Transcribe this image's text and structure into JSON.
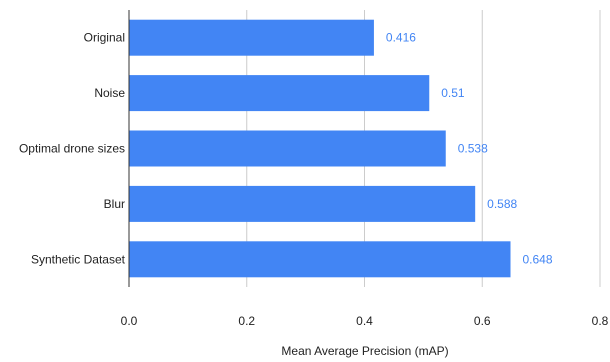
{
  "chart_data": {
    "type": "bar",
    "orientation": "horizontal",
    "categories": [
      "Original",
      "Noise",
      "Optimal drone sizes",
      "Blur",
      "Synthetic Dataset"
    ],
    "values": [
      0.416,
      0.51,
      0.538,
      0.588,
      0.648
    ],
    "data_labels": [
      "0.416",
      "0.51",
      "0.538",
      "0.588",
      "0.648"
    ],
    "title": "",
    "xlabel": "Mean Average Precision (mAP)",
    "ylabel": "",
    "xlim": [
      0,
      0.8
    ],
    "xticks": [
      0,
      0.2,
      0.4,
      0.6,
      0.8
    ],
    "xtick_labels": [
      "0.0",
      "0.2",
      "0.4",
      "0.6",
      "0.8"
    ],
    "grid": true,
    "legend": "none",
    "colors": {
      "bar": "#4285f4",
      "data_label": "#4285f4",
      "grid": "#cccccc",
      "axis": "#333333"
    }
  }
}
